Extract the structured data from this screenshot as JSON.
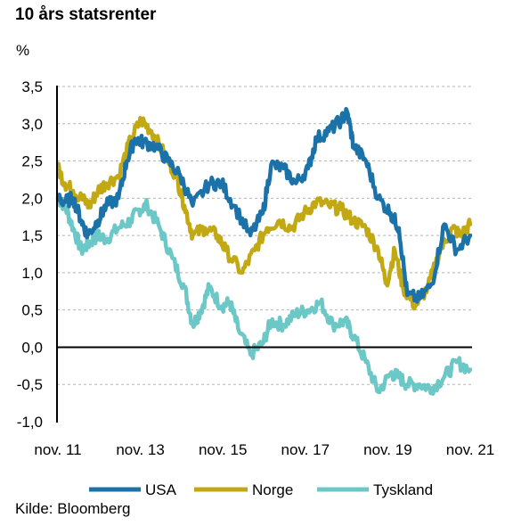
{
  "title": "10 års statsrenter",
  "unit": "%",
  "source": "Kilde: Bloomberg",
  "colors": {
    "USA": "#1a72a8",
    "Norge": "#c2a914",
    "Tyskland": "#6cc7c7"
  },
  "chart_data": {
    "type": "line",
    "title": "10 års statsrenter",
    "ylabel": "%",
    "xlabel": "",
    "ylim": [
      -1.0,
      3.5
    ],
    "xlim": [
      2011.83,
      2021.83
    ],
    "yticks": [
      "3,5",
      "3,0",
      "2,5",
      "2,0",
      "1,5",
      "1,0",
      "0,5",
      "0,0",
      "-0,5",
      "-1,0"
    ],
    "ytick_values": [
      3.5,
      3.0,
      2.5,
      2.0,
      1.5,
      1.0,
      0.5,
      0.0,
      -0.5,
      -1.0
    ],
    "xticks": [
      "nov. 11",
      "nov. 13",
      "nov. 15",
      "nov. 17",
      "nov. 19",
      "nov. 21"
    ],
    "xtick_values": [
      2011.83,
      2013.83,
      2015.83,
      2017.83,
      2019.83,
      2021.83
    ],
    "grid": "horizontal dashed",
    "legend": "bottom",
    "series": [
      {
        "name": "USA",
        "x": [
          2011.83,
          2012.0,
          2012.2,
          2012.4,
          2012.55,
          2012.8,
          2013.0,
          2013.3,
          2013.5,
          2013.7,
          2013.9,
          2014.2,
          2014.5,
          2014.8,
          2015.1,
          2015.5,
          2015.8,
          2016.1,
          2016.5,
          2016.8,
          2017.0,
          2017.3,
          2017.6,
          2017.9,
          2018.1,
          2018.4,
          2018.7,
          2018.85,
          2019.0,
          2019.3,
          2019.6,
          2019.9,
          2020.1,
          2020.3,
          2020.6,
          2020.9,
          2021.2,
          2021.5,
          2021.83
        ],
        "y": [
          2.0,
          1.95,
          2.0,
          1.7,
          1.5,
          1.7,
          1.9,
          2.0,
          2.5,
          2.8,
          2.75,
          2.7,
          2.5,
          2.3,
          1.9,
          2.2,
          2.2,
          1.9,
          1.5,
          1.8,
          2.45,
          2.4,
          2.2,
          2.4,
          2.8,
          2.9,
          3.05,
          3.15,
          2.7,
          2.5,
          2.0,
          1.8,
          1.6,
          0.7,
          0.65,
          0.85,
          1.65,
          1.3,
          1.5
        ]
      },
      {
        "name": "Norge",
        "x": [
          2011.83,
          2012.0,
          2012.2,
          2012.4,
          2012.6,
          2012.8,
          2013.0,
          2013.3,
          2013.6,
          2013.85,
          2014.1,
          2014.4,
          2014.7,
          2014.9,
          2015.1,
          2015.4,
          2015.7,
          2015.9,
          2016.3,
          2016.6,
          2016.9,
          2017.2,
          2017.5,
          2017.8,
          2018.1,
          2018.4,
          2018.7,
          2019.0,
          2019.3,
          2019.6,
          2019.8,
          2020.0,
          2020.2,
          2020.5,
          2020.8,
          2021.1,
          2021.4,
          2021.6,
          2021.83
        ],
        "y": [
          2.4,
          2.2,
          2.1,
          2.0,
          1.9,
          2.1,
          2.2,
          2.3,
          2.8,
          3.05,
          2.9,
          2.6,
          2.3,
          1.9,
          1.5,
          1.6,
          1.5,
          1.3,
          1.0,
          1.3,
          1.6,
          1.7,
          1.6,
          1.8,
          1.95,
          1.9,
          1.85,
          1.7,
          1.6,
          1.3,
          0.85,
          1.3,
          0.8,
          0.55,
          0.8,
          1.3,
          1.6,
          1.5,
          1.65
        ]
      },
      {
        "name": "Tyskland",
        "x": [
          2011.83,
          2012.0,
          2012.2,
          2012.4,
          2012.6,
          2012.8,
          2013.0,
          2013.3,
          2013.6,
          2013.8,
          2014.0,
          2014.3,
          2014.6,
          2014.9,
          2015.1,
          2015.3,
          2015.5,
          2015.8,
          2016.0,
          2016.2,
          2016.5,
          2016.8,
          2017.0,
          2017.3,
          2017.6,
          2017.9,
          2018.2,
          2018.5,
          2018.8,
          2019.0,
          2019.3,
          2019.6,
          2019.9,
          2020.1,
          2020.3,
          2020.6,
          2020.9,
          2021.2,
          2021.5,
          2021.83
        ],
        "y": [
          2.0,
          1.9,
          1.6,
          1.3,
          1.4,
          1.5,
          1.45,
          1.6,
          1.7,
          1.85,
          1.9,
          1.6,
          1.2,
          0.8,
          0.3,
          0.5,
          0.8,
          0.55,
          0.6,
          0.25,
          -0.1,
          0.05,
          0.35,
          0.3,
          0.45,
          0.5,
          0.6,
          0.3,
          0.35,
          0.15,
          -0.2,
          -0.6,
          -0.35,
          -0.4,
          -0.5,
          -0.5,
          -0.55,
          -0.4,
          -0.2,
          -0.3
        ]
      }
    ]
  }
}
